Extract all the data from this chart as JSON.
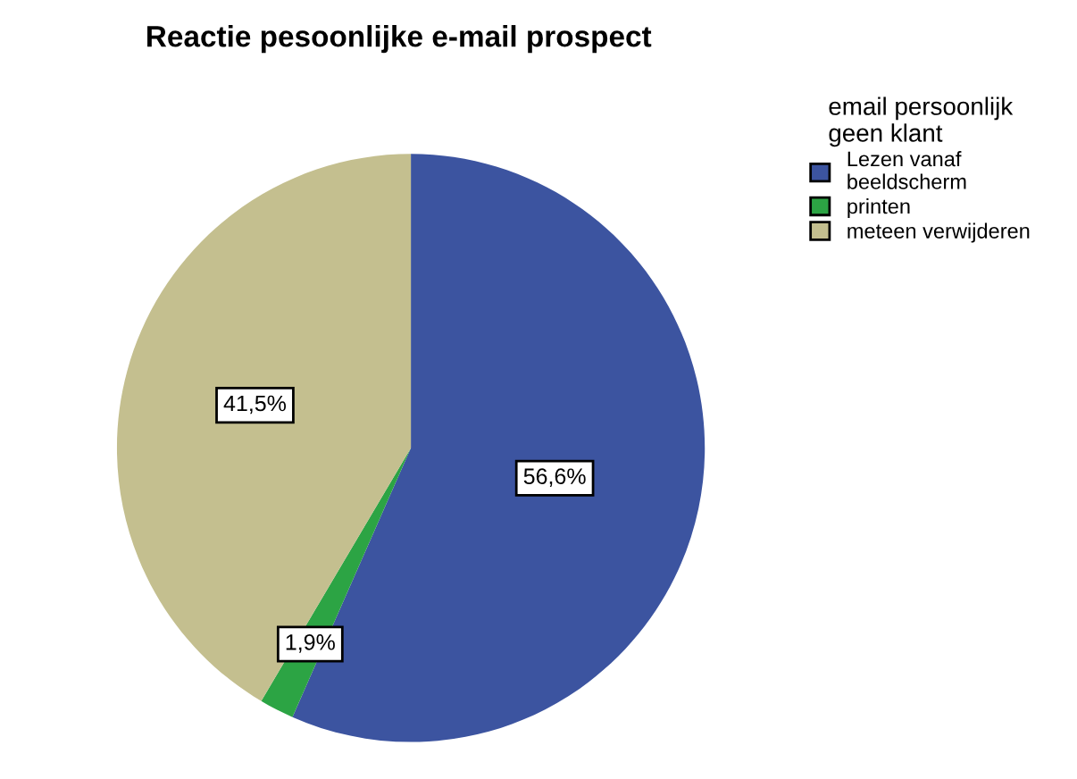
{
  "chart_data": {
    "type": "pie",
    "title": "Reactie pesoonlijke e-mail prospect",
    "legend_title": "email persoonlijk\ngeen klant",
    "categories": [
      "Lezen vanaf\nbeeldscherm",
      "printen",
      "meteen verwijderen"
    ],
    "values": [
      56.6,
      1.9,
      41.5
    ],
    "colors": [
      "#3c54a0",
      "#2ca444",
      "#c4bf8f"
    ],
    "value_labels": [
      "56,6%",
      "1,9%",
      "41,5%"
    ],
    "legend": "top right"
  }
}
